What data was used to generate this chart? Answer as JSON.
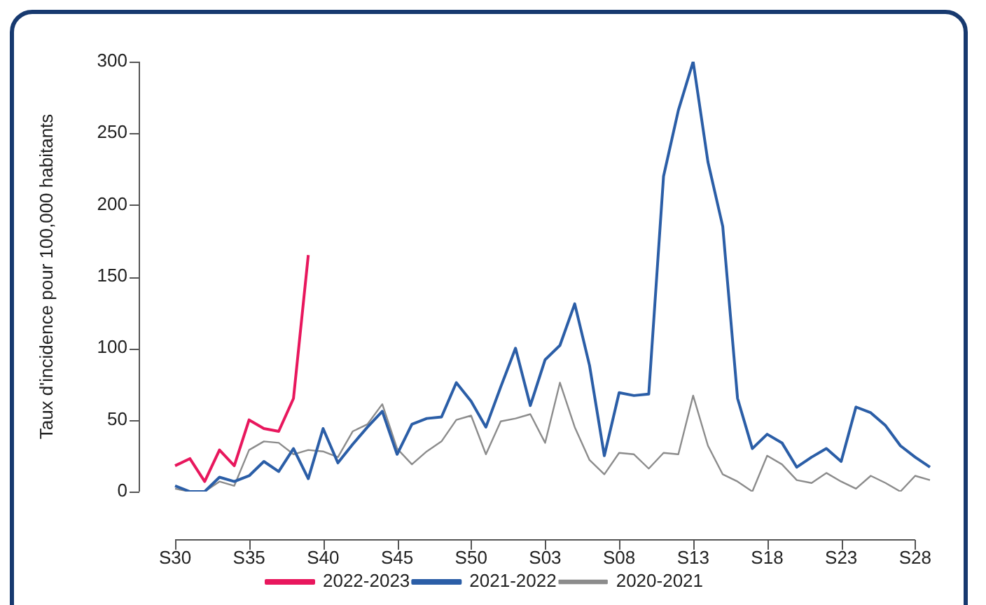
{
  "chart_data": {
    "type": "line",
    "ylabel": "Taux d'incidence pour 100,000 habitants",
    "categories": [
      "S30",
      null,
      null,
      null,
      null,
      "S35",
      null,
      null,
      null,
      null,
      "S40",
      null,
      null,
      null,
      null,
      "S45",
      null,
      null,
      null,
      null,
      "S50",
      null,
      null,
      null,
      null,
      "S03",
      null,
      null,
      null,
      null,
      "S08",
      null,
      null,
      null,
      null,
      "S13",
      null,
      null,
      null,
      null,
      "S18",
      null,
      null,
      null,
      null,
      "S23",
      null,
      null,
      null,
      null,
      "S28",
      null
    ],
    "series": [
      {
        "name": "2022-2023",
        "color": "#e8175d",
        "values": [
          18,
          23,
          7,
          29,
          18,
          50,
          44,
          42,
          65,
          165,
          null,
          null,
          null,
          null,
          null,
          null,
          null,
          null,
          null,
          null,
          null,
          null,
          null,
          null,
          null,
          null,
          null,
          null,
          null,
          null,
          null,
          null,
          null,
          null,
          null,
          null,
          null,
          null,
          null,
          null,
          null,
          null,
          null,
          null,
          null,
          null,
          null,
          null,
          null,
          null,
          null,
          null
        ]
      },
      {
        "name": "2021-2022",
        "color": "#2b5ea7",
        "values": [
          4,
          0,
          0,
          10,
          7,
          11,
          21,
          14,
          30,
          9,
          44,
          20,
          33,
          45,
          56,
          26,
          47,
          51,
          52,
          76,
          63,
          45,
          73,
          100,
          60,
          92,
          102,
          131,
          88,
          25,
          69,
          67,
          68,
          220,
          266,
          300,
          230,
          185,
          65,
          30,
          40,
          34,
          17,
          24,
          30,
          21,
          59,
          55,
          46,
          32,
          24,
          17
        ]
      },
      {
        "name": "2020-2021",
        "color": "#8c8c8c",
        "values": [
          2,
          0,
          0,
          7,
          4,
          29,
          35,
          34,
          26,
          29,
          28,
          24,
          42,
          47,
          61,
          30,
          19,
          28,
          35,
          50,
          53,
          26,
          49,
          51,
          54,
          34,
          76,
          45,
          22,
          12,
          27,
          26,
          16,
          27,
          26,
          67,
          32,
          12,
          7,
          0,
          25,
          19,
          8,
          6,
          13,
          7,
          2,
          11,
          6,
          0,
          11,
          8
        ]
      }
    ],
    "ylim": [
      0,
      300
    ],
    "yticks": [
      0,
      50,
      100,
      150,
      200,
      250,
      300
    ],
    "grid": false,
    "legend": "bottom"
  }
}
